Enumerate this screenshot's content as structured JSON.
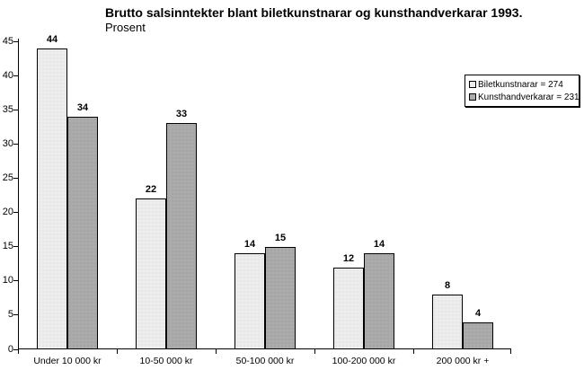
{
  "page": {
    "background": "#ffffff"
  },
  "chart_data": {
    "type": "bar",
    "title": "Brutto salsinntekter blant biletkunstnarar og kunsthandverkarar 1993.",
    "subtitle": "Prosent",
    "categories": [
      "Under 10 000 kr",
      "10-50 000 kr",
      "50-100 000 kr",
      "100-200 000 kr",
      "200 000 kr +"
    ],
    "series": [
      {
        "name": "Biletkunstnarar = 274",
        "values": [
          44,
          22,
          14,
          12,
          8
        ],
        "fill": "#ededed",
        "dot": "#cfcfcf"
      },
      {
        "name": "Kunsthandverkarar = 231",
        "values": [
          34,
          33,
          15,
          14,
          4
        ],
        "fill": "#ababab",
        "dot": "#8f8f8f"
      }
    ],
    "xlabel": "",
    "ylabel": "",
    "ylim": [
      0,
      45
    ],
    "yticks": [
      0,
      5,
      10,
      15,
      20,
      25,
      30,
      35,
      40,
      45
    ],
    "grid": false,
    "legend_position": "top-right",
    "bar_value_labels": true,
    "outline_color": "#000000"
  }
}
